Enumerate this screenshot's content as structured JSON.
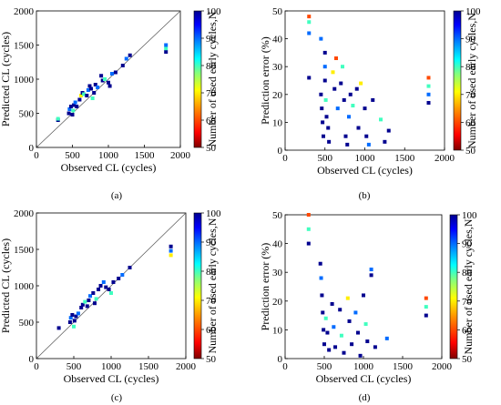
{
  "colorbar": {
    "label": "Number of used early cycles,N",
    "ticks": [
      50,
      60,
      70,
      80,
      90,
      100
    ],
    "range": [
      50,
      100
    ],
    "colors": [
      "#7f0000",
      "#ff0000",
      "#ff8000",
      "#ffff00",
      "#80ff80",
      "#00ffff",
      "#0080ff",
      "#0000ff",
      "#00008f"
    ]
  },
  "chart_data": [
    {
      "id": "a",
      "type": "scatter",
      "caption": "(a)",
      "xlabel": "Observed CL (cycles)",
      "ylabel": "Predicted CL (cycles)",
      "xlim": [
        0,
        2000
      ],
      "ylim": [
        0,
        2000
      ],
      "xticks": [
        0,
        500,
        1000,
        1500,
        2000
      ],
      "yticks": [
        0,
        500,
        1000,
        1500,
        2000
      ],
      "diagonal": true,
      "points": [
        [
          300,
          400,
          100
        ],
        [
          300,
          420,
          80
        ],
        [
          450,
          500,
          100
        ],
        [
          460,
          560,
          90
        ],
        [
          480,
          600,
          100
        ],
        [
          500,
          480,
          100
        ],
        [
          510,
          540,
          80
        ],
        [
          520,
          620,
          100
        ],
        [
          540,
          660,
          90
        ],
        [
          560,
          600,
          100
        ],
        [
          600,
          700,
          100
        ],
        [
          620,
          760,
          70
        ],
        [
          640,
          800,
          100
        ],
        [
          660,
          780,
          80
        ],
        [
          700,
          760,
          100
        ],
        [
          720,
          840,
          90
        ],
        [
          740,
          900,
          100
        ],
        [
          760,
          860,
          100
        ],
        [
          780,
          720,
          80
        ],
        [
          800,
          800,
          100
        ],
        [
          820,
          920,
          100
        ],
        [
          850,
          880,
          90
        ],
        [
          900,
          1050,
          100
        ],
        [
          920,
          980,
          100
        ],
        [
          950,
          1000,
          80
        ],
        [
          1000,
          950,
          100
        ],
        [
          1020,
          900,
          100
        ],
        [
          1050,
          1080,
          90
        ],
        [
          1100,
          1100,
          100
        ],
        [
          1200,
          1200,
          100
        ],
        [
          1250,
          1300,
          90
        ],
        [
          1300,
          1350,
          100
        ],
        [
          1800,
          1400,
          100
        ],
        [
          1800,
          1450,
          80
        ],
        [
          1800,
          1500,
          90
        ]
      ]
    },
    {
      "id": "b",
      "type": "scatter",
      "caption": "(b)",
      "xlabel": "Observed CL (cycles)",
      "ylabel": "Prediction error (%)",
      "xlim": [
        0,
        2000
      ],
      "ylim": [
        0,
        50
      ],
      "xticks": [
        0,
        500,
        1000,
        1500,
        2000
      ],
      "yticks": [
        0,
        10,
        20,
        30,
        40,
        50
      ],
      "points": [
        [
          300,
          48,
          60
        ],
        [
          300,
          46,
          80
        ],
        [
          300,
          42,
          90
        ],
        [
          300,
          26,
          100
        ],
        [
          450,
          40,
          90
        ],
        [
          450,
          20,
          100
        ],
        [
          460,
          15,
          100
        ],
        [
          470,
          10,
          100
        ],
        [
          480,
          5,
          100
        ],
        [
          500,
          35,
          100
        ],
        [
          500,
          30,
          90
        ],
        [
          500,
          25,
          100
        ],
        [
          510,
          18,
          80
        ],
        [
          520,
          12,
          100
        ],
        [
          540,
          8,
          100
        ],
        [
          550,
          3,
          100
        ],
        [
          600,
          28,
          70
        ],
        [
          620,
          22,
          100
        ],
        [
          640,
          33,
          60
        ],
        [
          660,
          15,
          90
        ],
        [
          700,
          24,
          100
        ],
        [
          720,
          30,
          80
        ],
        [
          740,
          18,
          100
        ],
        [
          760,
          5,
          100
        ],
        [
          780,
          2,
          100
        ],
        [
          800,
          12,
          90
        ],
        [
          820,
          20,
          100
        ],
        [
          850,
          16,
          80
        ],
        [
          900,
          22,
          100
        ],
        [
          920,
          8,
          100
        ],
        [
          950,
          24,
          70
        ],
        [
          1000,
          15,
          100
        ],
        [
          1020,
          5,
          100
        ],
        [
          1050,
          2,
          90
        ],
        [
          1100,
          18,
          100
        ],
        [
          1200,
          11,
          80
        ],
        [
          1250,
          3,
          100
        ],
        [
          1300,
          7,
          100
        ],
        [
          1800,
          26,
          60
        ],
        [
          1800,
          23,
          80
        ],
        [
          1800,
          20,
          90
        ],
        [
          1800,
          17,
          100
        ]
      ]
    },
    {
      "id": "c",
      "type": "scatter",
      "caption": "(c)",
      "xlabel": "Observed CL (cycles)",
      "ylabel": "Predicted CL (cycles)",
      "xlim": [
        0,
        2000
      ],
      "ylim": [
        0,
        2000
      ],
      "xticks": [
        0,
        500,
        1000,
        1500,
        2000
      ],
      "yticks": [
        0,
        500,
        1000,
        1500,
        2000
      ],
      "diagonal": true,
      "points": [
        [
          300,
          420,
          100
        ],
        [
          450,
          500,
          100
        ],
        [
          460,
          560,
          90
        ],
        [
          480,
          600,
          100
        ],
        [
          500,
          440,
          80
        ],
        [
          510,
          520,
          100
        ],
        [
          530,
          580,
          100
        ],
        [
          560,
          620,
          90
        ],
        [
          600,
          700,
          100
        ],
        [
          620,
          740,
          100
        ],
        [
          650,
          780,
          80
        ],
        [
          680,
          720,
          100
        ],
        [
          700,
          800,
          100
        ],
        [
          720,
          860,
          90
        ],
        [
          760,
          900,
          100
        ],
        [
          780,
          760,
          100
        ],
        [
          800,
          820,
          80
        ],
        [
          830,
          950,
          100
        ],
        [
          860,
          1000,
          100
        ],
        [
          900,
          1050,
          90
        ],
        [
          930,
          980,
          100
        ],
        [
          970,
          950,
          100
        ],
        [
          1000,
          900,
          80
        ],
        [
          1030,
          1050,
          100
        ],
        [
          1100,
          1100,
          100
        ],
        [
          1150,
          1150,
          90
        ],
        [
          1250,
          1250,
          100
        ],
        [
          1800,
          1420,
          70
        ],
        [
          1800,
          1480,
          90
        ],
        [
          1800,
          1540,
          100
        ]
      ]
    },
    {
      "id": "d",
      "type": "scatter",
      "caption": "(d)",
      "xlabel": "Observed CL (cycles)",
      "ylabel": "Prediction error (%)",
      "xlim": [
        0,
        2000
      ],
      "ylim": [
        0,
        50
      ],
      "xticks": [
        0,
        500,
        1000,
        1500,
        2000
      ],
      "yticks": [
        0,
        10,
        20,
        30,
        40,
        50
      ],
      "points": [
        [
          300,
          50,
          60
        ],
        [
          300,
          45,
          80
        ],
        [
          300,
          40,
          100
        ],
        [
          450,
          33,
          100
        ],
        [
          460,
          28,
          90
        ],
        [
          470,
          22,
          100
        ],
        [
          480,
          16,
          100
        ],
        [
          490,
          10,
          100
        ],
        [
          500,
          5,
          100
        ],
        [
          520,
          14,
          80
        ],
        [
          540,
          9,
          100
        ],
        [
          560,
          3,
          100
        ],
        [
          600,
          19,
          100
        ],
        [
          620,
          11,
          90
        ],
        [
          640,
          4,
          100
        ],
        [
          700,
          17,
          100
        ],
        [
          720,
          8,
          80
        ],
        [
          750,
          2,
          100
        ],
        [
          800,
          21,
          70
        ],
        [
          820,
          13,
          100
        ],
        [
          850,
          5,
          100
        ],
        [
          900,
          16,
          90
        ],
        [
          930,
          9,
          100
        ],
        [
          960,
          1,
          100
        ],
        [
          1000,
          22,
          100
        ],
        [
          1030,
          12,
          80
        ],
        [
          1050,
          6,
          100
        ],
        [
          1100,
          31,
          90
        ],
        [
          1100,
          29,
          100
        ],
        [
          1150,
          4,
          100
        ],
        [
          1300,
          7,
          90
        ],
        [
          1800,
          21,
          60
        ],
        [
          1800,
          18,
          80
        ],
        [
          1800,
          15,
          100
        ]
      ]
    }
  ]
}
